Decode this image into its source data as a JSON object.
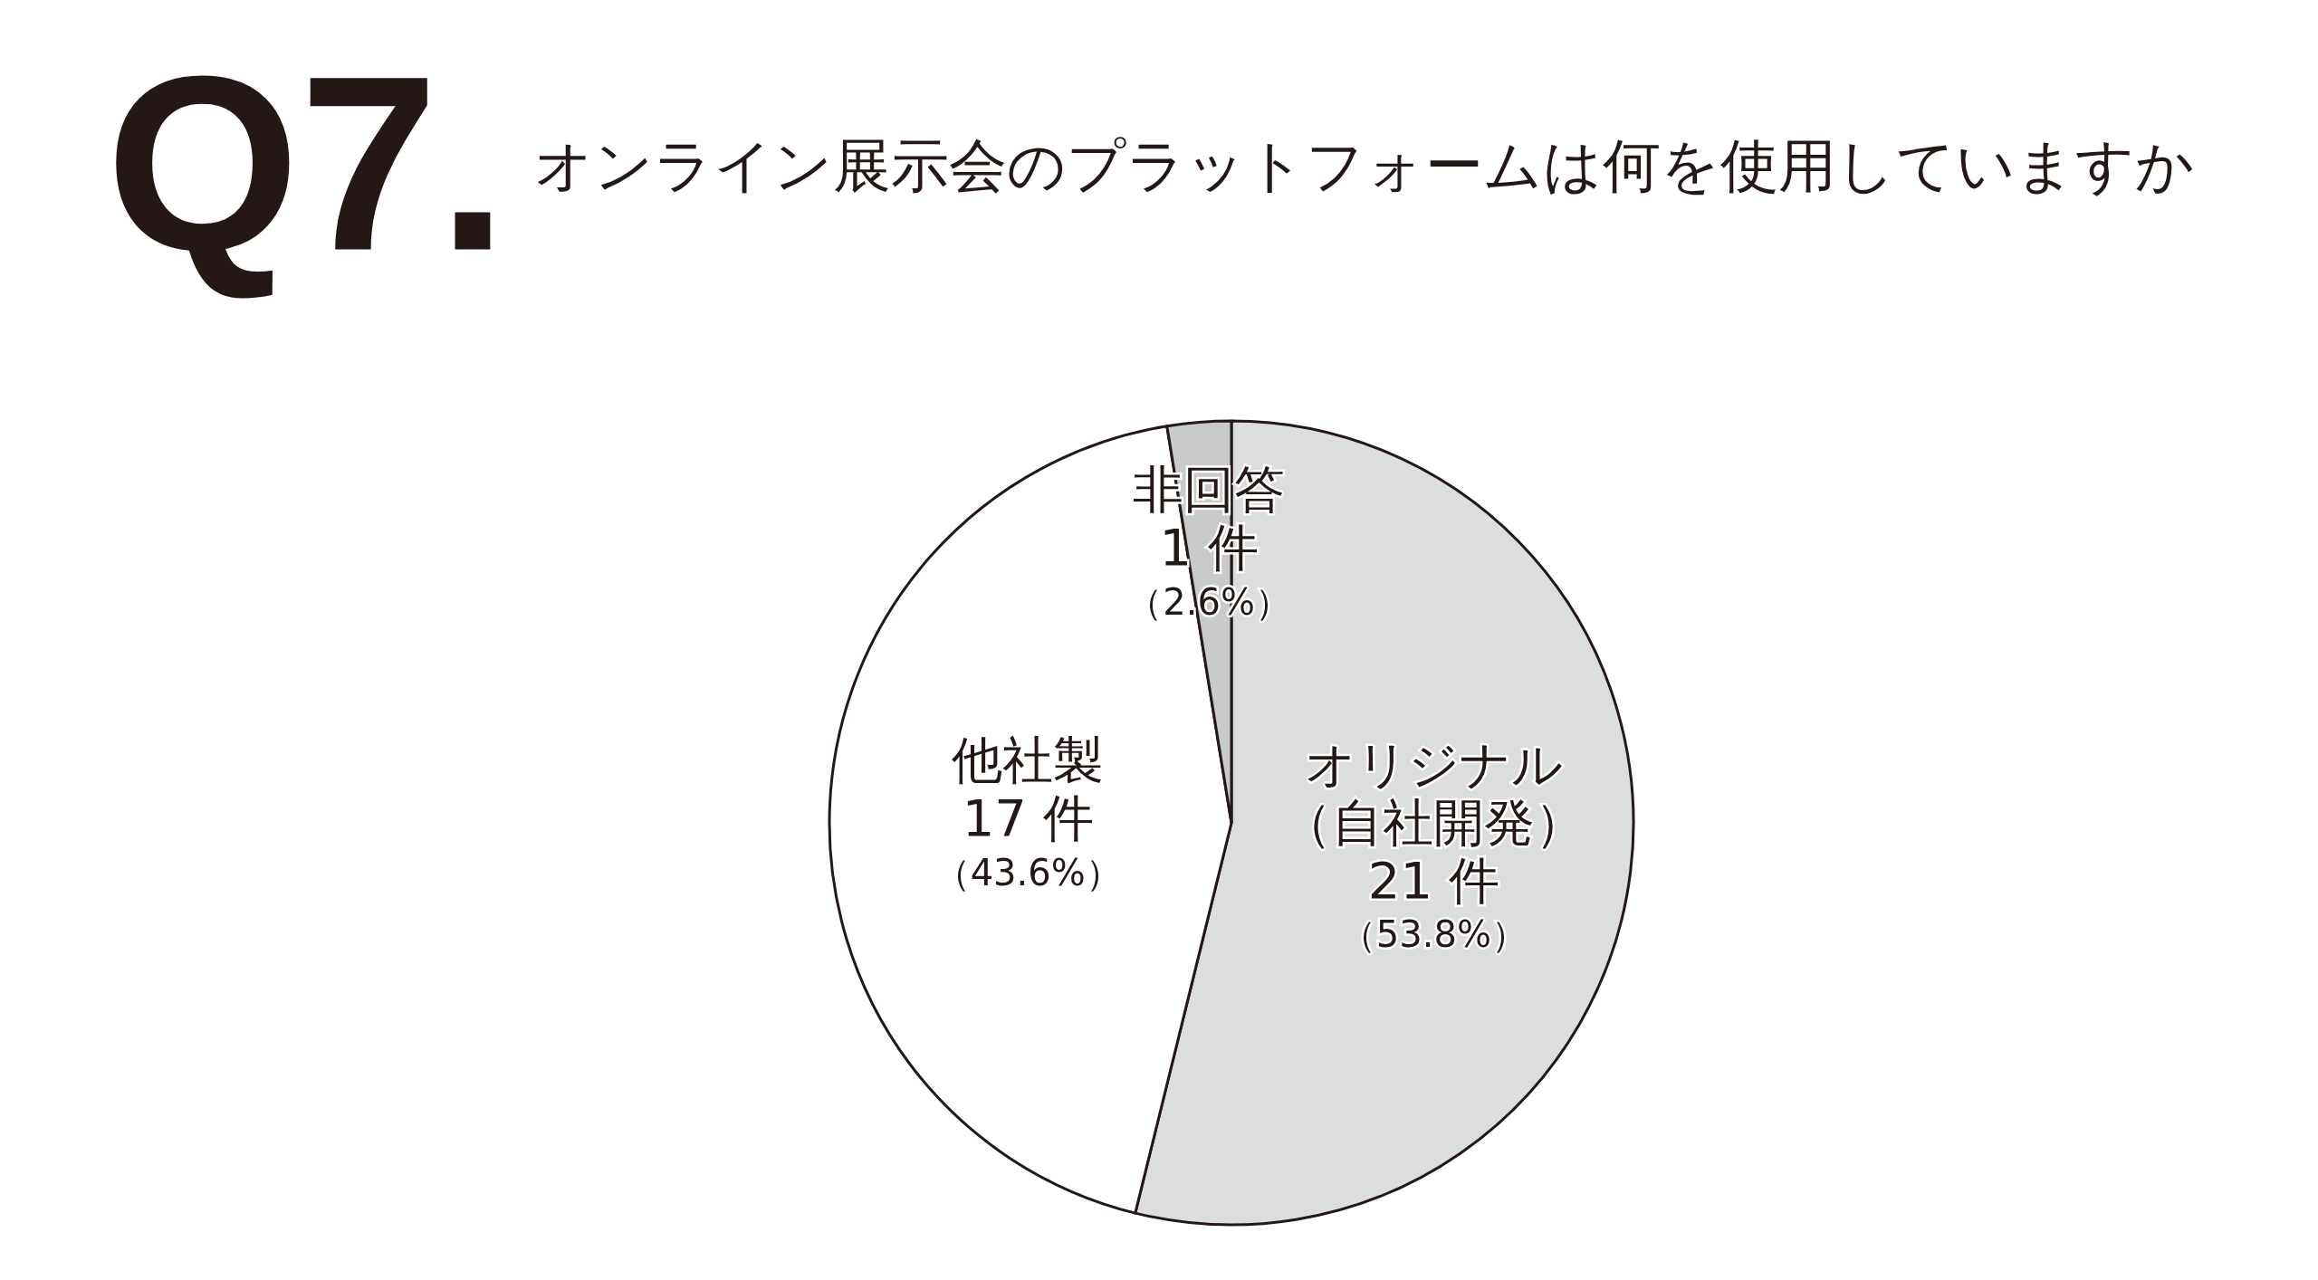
{
  "chart_data": {
    "type": "pie",
    "title": "Q7.",
    "subtitle": "オンライン展示会のプラットフォームは何を使用していますか",
    "categories": [
      "オリジナル（自社開発）",
      "他社製",
      "非回答"
    ],
    "values": [
      21,
      17,
      1
    ],
    "colors": [
      "#dcdddd",
      "#ffffff",
      "#c9caca"
    ],
    "value_labels": [
      "21 件（53.8%）",
      "17 件（43.6%）",
      "1 件（2.6%）"
    ]
  }
}
